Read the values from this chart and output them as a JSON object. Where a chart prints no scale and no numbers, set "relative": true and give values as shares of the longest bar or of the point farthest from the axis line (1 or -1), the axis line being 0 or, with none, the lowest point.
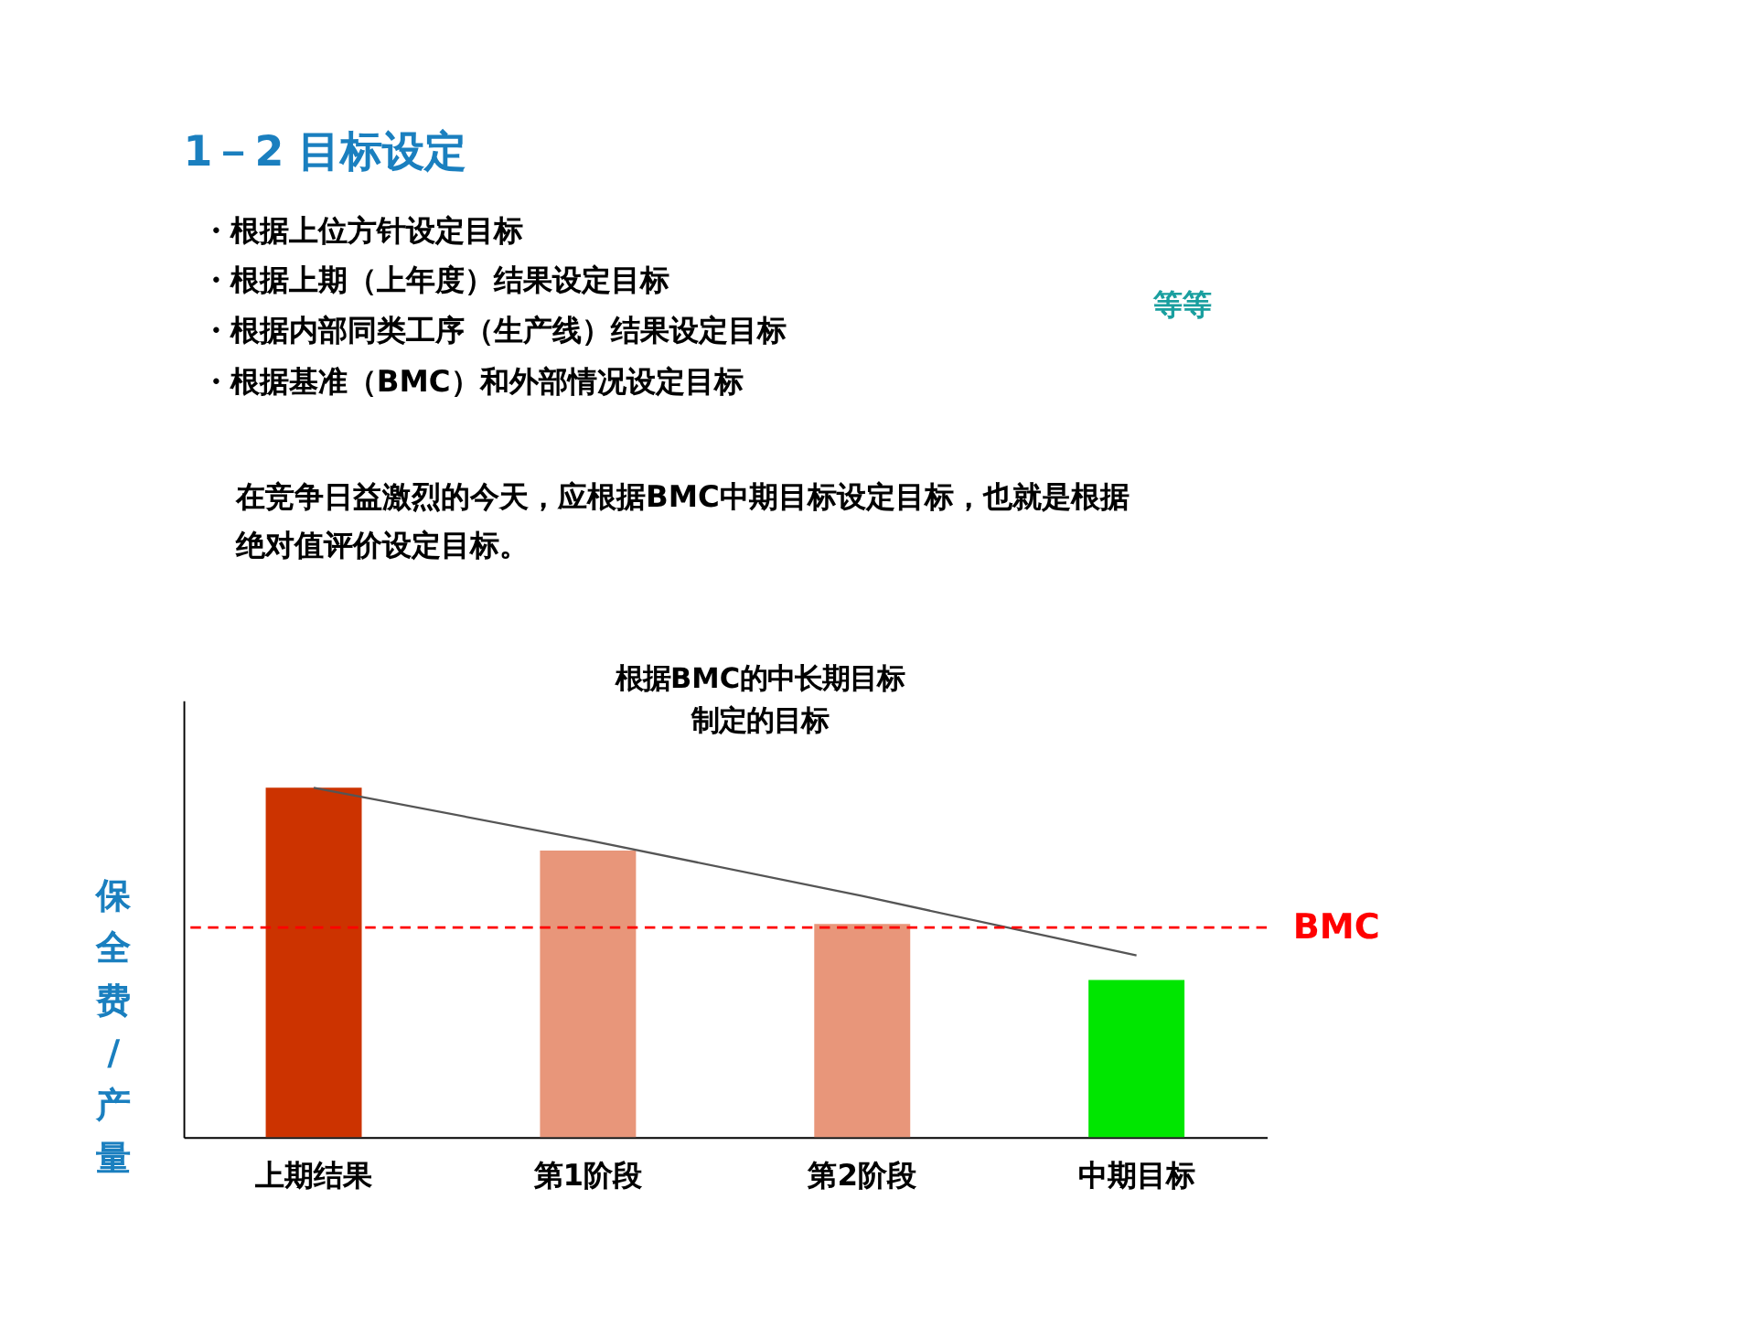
{
  "chart_data": {
    "type": "bar",
    "title": "1－2 目标设定",
    "relative": true,
    "tick_labels": "x",
    "ylabel": "保全费/产量",
    "categories": [
      "上期结果",
      "第1阶段",
      "第2阶段",
      "中期目标"
    ],
    "series": [
      {
        "colors": [
          "#cc3300",
          "#e8967a",
          "#e8967a",
          "#00e600"
        ],
        "values": [
          1.0,
          0.82,
          0.61,
          0.45
        ]
      },
      {
        "type": "line",
        "color": "#555555",
        "values": [
          1.0,
          0.85,
          0.69,
          0.52
        ]
      }
    ],
    "ref_lines": [
      {
        "axis": "y",
        "value": 0.6,
        "label": "BMC",
        "color": "#ff0000",
        "line_style": "dashed"
      }
    ],
    "annotations": [
      "・根据上位方针设定目标",
      "・根据上期（上年度）结果设定目标",
      "・根据内部同类工序（生产线）结果设定目标",
      "・根据基准（BMC）和外部情况设定目标",
      "等等",
      "在竞争日益激烈的今天，应根据BMC中期目标设定目标，也就是根据绝对值评价设定目标。",
      "根据BMC的中长期目标制定的目标"
    ]
  }
}
